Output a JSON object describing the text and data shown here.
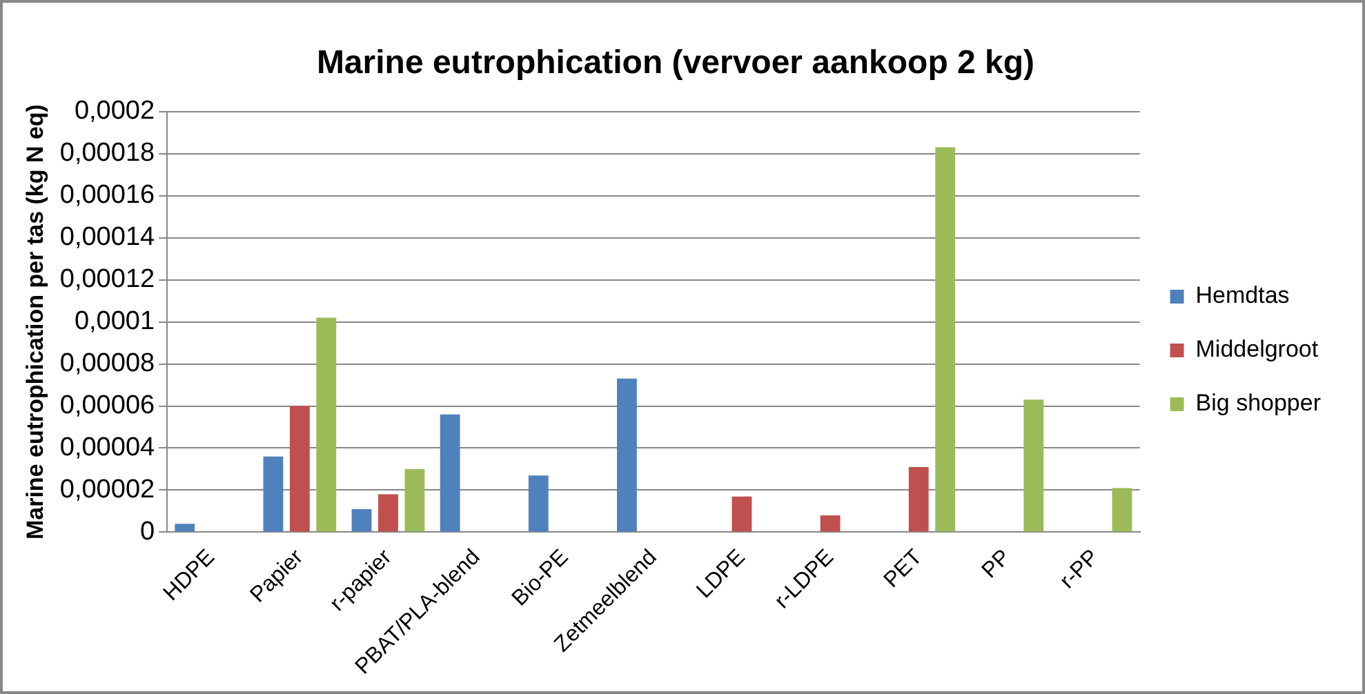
{
  "chart_data": {
    "type": "bar",
    "title": "Marine eutrophication (vervoer aankoop 2 kg)",
    "ylabel": "Marine eutrophication per tas (kg N eq)",
    "categories": [
      "HDPE",
      "Papier",
      "r-papier",
      "PBAT/PLA-blend",
      "Bio-PE",
      "Zetmeelblend",
      "LDPE",
      "r-LDPE",
      "PET",
      "PP",
      "r-PP"
    ],
    "series": [
      {
        "name": "Hemdtas",
        "color": "#4f81bd",
        "values": [
          4e-06,
          3.6e-05,
          1.1e-05,
          5.6e-05,
          2.7e-05,
          7.3e-05,
          null,
          null,
          null,
          null,
          null
        ]
      },
      {
        "name": "Middelgroot",
        "color": "#c0504d",
        "values": [
          null,
          6e-05,
          1.8e-05,
          null,
          null,
          null,
          1.7e-05,
          8e-06,
          3.1e-05,
          null,
          null
        ]
      },
      {
        "name": "Big shopper",
        "color": "#9bbb59",
        "values": [
          null,
          0.000102,
          3e-05,
          null,
          null,
          null,
          null,
          null,
          0.000183,
          6.3e-05,
          2.1e-05
        ]
      }
    ],
    "ylim": [
      0,
      0.0002
    ],
    "yticks": [
      0,
      {
        "value": 2e-05,
        "label": "0,00002"
      },
      {
        "value": 4e-05,
        "label": "0,00004"
      },
      {
        "value": 6e-05,
        "label": "0,00006"
      },
      {
        "value": 8e-05,
        "label": "0,00008"
      },
      {
        "value": 0.0001,
        "label": "0,0001"
      },
      {
        "value": 0.00012,
        "label": "0,00012"
      },
      {
        "value": 0.00014,
        "label": "0,00014"
      },
      {
        "value": 0.00016,
        "label": "0,00016"
      },
      {
        "value": 0.00018,
        "label": "0,00018"
      },
      {
        "value": 0.0002,
        "label": "0,0002"
      }
    ],
    "grid": "y",
    "legend": "right"
  }
}
